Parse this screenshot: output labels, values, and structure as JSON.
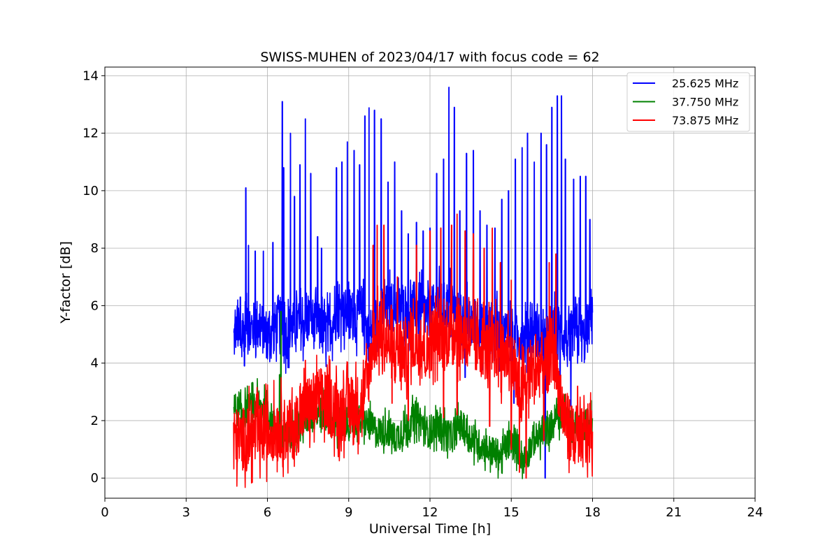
{
  "chart_data": {
    "type": "line",
    "title": "SWISS-MUHEN of 2023/04/17 with focus code = 62",
    "xlabel": "Universal Time [h]",
    "ylabel": "Y-factor [dB]",
    "xlim": [
      0,
      24
    ],
    "ylim": [
      -0.7,
      14.3
    ],
    "xticks": [
      0,
      3,
      6,
      9,
      12,
      15,
      18,
      21,
      24
    ],
    "yticks": [
      0,
      2,
      4,
      6,
      8,
      10,
      12,
      14
    ],
    "grid": true,
    "legend_position": "top-right",
    "series": [
      {
        "name": "25.625 MHz",
        "color": "#0000ff",
        "x": [
          4.75,
          4.9,
          5.0,
          5.1,
          5.25,
          5.4,
          5.6,
          5.8,
          6.0,
          6.2,
          6.4,
          6.55,
          6.7,
          6.9,
          7.1,
          7.3,
          7.5,
          7.7,
          7.9,
          8.1,
          8.3,
          8.5,
          8.7,
          8.85,
          9.0,
          9.2,
          9.4,
          9.5,
          9.6,
          9.75,
          9.9,
          10.1,
          10.3,
          10.5,
          10.7,
          10.9,
          11.1,
          11.3,
          11.5,
          11.7,
          11.9,
          12.1,
          12.3,
          12.5,
          12.7,
          12.9,
          13.1,
          13.3,
          13.5,
          13.7,
          13.9,
          14.1,
          14.3,
          14.5,
          14.7,
          14.9,
          15.1,
          15.3,
          15.5,
          15.7,
          15.9,
          16.1,
          16.3,
          16.5,
          16.7,
          16.9,
          17.1,
          17.3,
          17.5,
          17.7,
          17.9,
          18.0
        ],
        "y": [
          4.8,
          5.3,
          4.6,
          5.2,
          5.6,
          5.1,
          5.4,
          5.2,
          5.0,
          5.1,
          5.5,
          5.3,
          5.0,
          5.2,
          5.4,
          5.3,
          5.5,
          5.4,
          5.2,
          5.0,
          5.3,
          5.6,
          5.8,
          5.7,
          5.8,
          5.6,
          5.7,
          5.9,
          5.3,
          4.9,
          5.3,
          5.6,
          5.8,
          5.9,
          6.0,
          5.8,
          5.7,
          5.9,
          6.0,
          5.8,
          5.7,
          5.8,
          6.0,
          5.9,
          6.1,
          5.8,
          5.5,
          5.6,
          5.3,
          5.6,
          5.2,
          5.0,
          5.3,
          5.1,
          4.9,
          5.2,
          4.6,
          5.0,
          4.8,
          5.2,
          5.0,
          4.8,
          4.6,
          5.0,
          5.2,
          5.0,
          4.6,
          5.2,
          5.0,
          4.8,
          5.5,
          6.0
        ],
        "spikes": [
          [
            4.85,
            5.6
          ],
          [
            5.0,
            6.3
          ],
          [
            5.2,
            10.1
          ],
          [
            5.3,
            8.1
          ],
          [
            5.55,
            7.9
          ],
          [
            5.85,
            7.9
          ],
          [
            6.2,
            8.2
          ],
          [
            6.55,
            13.1
          ],
          [
            6.6,
            10.8
          ],
          [
            6.85,
            12.0
          ],
          [
            7.0,
            9.8
          ],
          [
            7.2,
            10.9
          ],
          [
            7.4,
            12.5
          ],
          [
            7.6,
            10.6
          ],
          [
            7.85,
            8.4
          ],
          [
            8.0,
            8.0
          ],
          [
            8.55,
            10.8
          ],
          [
            8.75,
            11.0
          ],
          [
            8.95,
            11.7
          ],
          [
            9.2,
            11.4
          ],
          [
            9.4,
            10.9
          ],
          [
            9.6,
            12.6
          ],
          [
            9.75,
            12.9
          ],
          [
            9.95,
            12.8
          ],
          [
            10.2,
            12.5
          ],
          [
            10.45,
            10.3
          ],
          [
            10.7,
            11.0
          ],
          [
            10.95,
            9.3
          ],
          [
            11.2,
            8.5
          ],
          [
            11.5,
            8.9
          ],
          [
            11.75,
            8.6
          ],
          [
            12.0,
            8.7
          ],
          [
            12.25,
            10.6
          ],
          [
            12.5,
            11.1
          ],
          [
            12.7,
            13.6
          ],
          [
            12.9,
            12.9
          ],
          [
            13.1,
            9.3
          ],
          [
            13.35,
            11.3
          ],
          [
            13.6,
            11.4
          ],
          [
            13.85,
            9.3
          ],
          [
            14.1,
            8.8
          ],
          [
            14.4,
            8.7
          ],
          [
            14.65,
            9.7
          ],
          [
            14.9,
            10.0
          ],
          [
            15.15,
            11.1
          ],
          [
            15.4,
            11.5
          ],
          [
            15.6,
            12.0
          ],
          [
            15.85,
            11.0
          ],
          [
            16.1,
            12.0
          ],
          [
            16.3,
            11.6
          ],
          [
            16.5,
            12.9
          ],
          [
            16.7,
            13.3
          ],
          [
            16.85,
            13.3
          ],
          [
            17.0,
            11.1
          ],
          [
            17.3,
            10.4
          ],
          [
            17.55,
            10.5
          ],
          [
            17.75,
            10.5
          ],
          [
            17.9,
            9.0
          ]
        ],
        "dips": [
          [
            5.15,
            3.9
          ],
          [
            9.75,
            3.9
          ],
          [
            13.3,
            3.5
          ],
          [
            15.1,
            2.6
          ],
          [
            16.25,
            0.0
          ],
          [
            16.8,
            3.0
          ],
          [
            17.2,
            2.5
          ]
        ]
      },
      {
        "name": "37.750 MHz",
        "color": "#008000",
        "x": [
          4.75,
          5.0,
          5.3,
          5.6,
          5.9,
          6.2,
          6.5,
          6.8,
          7.1,
          7.4,
          7.7,
          8.0,
          8.3,
          8.6,
          8.9,
          9.2,
          9.5,
          9.8,
          10.1,
          10.4,
          10.7,
          11.0,
          11.3,
          11.6,
          11.9,
          12.2,
          12.5,
          12.8,
          13.1,
          13.4,
          13.7,
          14.0,
          14.3,
          14.6,
          14.9,
          15.2,
          15.5,
          15.8,
          16.1,
          16.4,
          16.7,
          17.0,
          17.3,
          17.6,
          18.0
        ],
        "y": [
          2.5,
          2.2,
          2.4,
          2.6,
          2.4,
          2.0,
          1.2,
          1.5,
          1.8,
          2.0,
          2.2,
          2.3,
          2.1,
          1.7,
          1.9,
          2.0,
          2.0,
          1.8,
          1.6,
          1.7,
          1.4,
          1.6,
          2.0,
          2.1,
          1.6,
          1.8,
          1.7,
          1.4,
          1.9,
          1.5,
          1.2,
          1.1,
          0.9,
          0.8,
          1.2,
          1.1,
          0.6,
          1.3,
          1.5,
          1.7,
          2.2,
          2.1,
          1.8,
          1.9,
          1.9
        ],
        "spikes": [
          [
            6.45,
            3.6
          ],
          [
            6.5,
            5.8
          ],
          [
            17.95,
            2.7
          ]
        ]
      },
      {
        "name": "73.875 MHz",
        "color": "#ff0000",
        "x": [
          4.75,
          5.0,
          5.3,
          5.6,
          5.9,
          6.2,
          6.5,
          6.8,
          7.1,
          7.3,
          7.5,
          7.7,
          7.9,
          8.1,
          8.3,
          8.5,
          8.7,
          8.9,
          9.1,
          9.3,
          9.5,
          9.7,
          9.9,
          10.1,
          10.3,
          10.5,
          10.7,
          10.9,
          11.1,
          11.3,
          11.5,
          11.7,
          11.9,
          12.1,
          12.3,
          12.5,
          12.7,
          12.9,
          13.1,
          13.3,
          13.5,
          13.7,
          13.9,
          14.1,
          14.3,
          14.5,
          14.7,
          14.9,
          15.1,
          15.3,
          15.5,
          15.7,
          15.9,
          16.1,
          16.3,
          16.5,
          16.7,
          16.9,
          17.1,
          17.3,
          17.5,
          17.7,
          18.0
        ],
        "y": [
          1.4,
          1.3,
          1.5,
          1.4,
          1.6,
          1.7,
          1.8,
          1.6,
          1.9,
          2.3,
          2.5,
          2.6,
          2.8,
          2.7,
          2.5,
          2.4,
          2.3,
          2.4,
          2.5,
          2.5,
          2.7,
          3.4,
          4.8,
          5.0,
          4.8,
          4.6,
          4.4,
          4.5,
          4.3,
          4.9,
          4.6,
          4.8,
          4.3,
          4.9,
          5.1,
          4.8,
          5.0,
          5.3,
          4.9,
          5.0,
          4.8,
          4.6,
          4.7,
          4.4,
          4.6,
          4.5,
          4.2,
          4.4,
          3.8,
          2.8,
          3.2,
          3.8,
          3.6,
          4.0,
          3.8,
          4.6,
          3.5,
          2.3,
          1.8,
          1.6,
          1.3,
          1.4,
          1.6
        ],
        "spikes": [
          [
            7.4,
            4.1
          ],
          [
            8.5,
            3.3
          ],
          [
            9.1,
            3.5
          ],
          [
            9.9,
            8.1
          ],
          [
            10.05,
            8.8
          ],
          [
            10.3,
            8.8
          ],
          [
            10.8,
            7.0
          ],
          [
            11.5,
            8.1
          ],
          [
            12.0,
            8.6
          ],
          [
            12.4,
            8.7
          ],
          [
            12.8,
            8.8
          ],
          [
            13.0,
            9.2
          ],
          [
            13.3,
            8.6
          ],
          [
            13.6,
            8.5
          ],
          [
            14.0,
            8.0
          ],
          [
            14.3,
            8.7
          ],
          [
            14.6,
            7.5
          ],
          [
            15.0,
            6.9
          ],
          [
            15.3,
            4.9
          ],
          [
            15.9,
            5.0
          ],
          [
            16.4,
            7.5
          ],
          [
            16.65,
            7.8
          ],
          [
            17.45,
            3.2
          ],
          [
            17.9,
            2.6
          ]
        ],
        "dips": [
          [
            10.6,
            2.6
          ],
          [
            11.2,
            2.0
          ],
          [
            12.5,
            2.1
          ],
          [
            13.0,
            2.2
          ],
          [
            14.2,
            1.8
          ],
          [
            15.0,
            1.0
          ],
          [
            15.3,
            0.2
          ],
          [
            15.55,
            0.0
          ],
          [
            16.2,
            1.3
          ],
          [
            17.3,
            0.6
          ]
        ]
      }
    ]
  }
}
